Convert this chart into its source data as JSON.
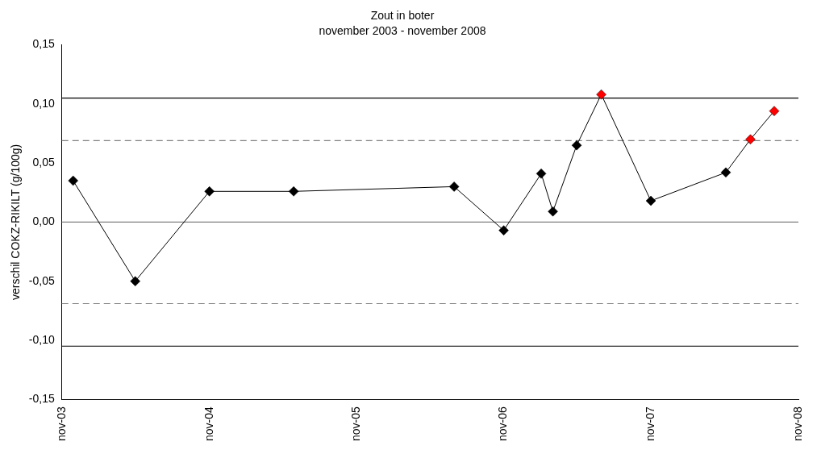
{
  "chart_data": {
    "type": "line",
    "title": "Zout in boter",
    "subtitle": "november 2003 - november 2008",
    "ylabel": "verschil COKZ-RIKILT (g/100g)",
    "x": [
      "2003-11-29",
      "2004-05-01",
      "2004-11-01",
      "2005-05-29",
      "2006-07-01",
      "2006-11-01",
      "2007-02-02",
      "2007-03-03",
      "2007-05-01",
      "2007-07-01",
      "2007-11-01",
      "2008-05-05",
      "2008-07-05",
      "2008-09-02"
    ],
    "series": [
      {
        "color": "#000000",
        "values": [
          0.035,
          -0.05,
          0.026,
          0.026,
          0.03,
          -0.007,
          0.041,
          0.009,
          0.065,
          0.108,
          0.018,
          0.042,
          0.07,
          0.094
        ],
        "colors": [
          "#000000",
          "#000000",
          "#000000",
          "#000000",
          "#000000",
          "#000000",
          "#000000",
          "#000000",
          "#000000",
          "#ff0000",
          "#000000",
          "#000000",
          "#ff0000",
          "#ff0000"
        ]
      }
    ],
    "xlim": [
      "2003-11-01",
      "2008-11-01"
    ],
    "xticks": [
      {
        "value": "2003-11-01",
        "label": "nov-03"
      },
      {
        "value": "2004-11-01",
        "label": "nov-04"
      },
      {
        "value": "2005-11-01",
        "label": "nov-05"
      },
      {
        "value": "2006-11-01",
        "label": "nov-06"
      },
      {
        "value": "2007-11-01",
        "label": "nov-07"
      },
      {
        "value": "2008-11-01",
        "label": "nov-08"
      }
    ],
    "ylim": [
      -0.15,
      0.15
    ],
    "yticks": [
      {
        "value": -0.15,
        "label": "-0,15"
      },
      {
        "value": -0.1,
        "label": "-0,10"
      },
      {
        "value": -0.05,
        "label": "-0,05"
      },
      {
        "value": 0,
        "label": "0,00"
      },
      {
        "value": 0.05,
        "label": "0,05"
      },
      {
        "value": 0.1,
        "label": "0,10"
      },
      {
        "value": 0.15,
        "label": "0,15"
      }
    ],
    "ref_lines": [
      {
        "axis": "y",
        "value": 0.105,
        "color": "#000000",
        "line_style": "solid"
      },
      {
        "axis": "y",
        "value": 0.069,
        "color": "#808080",
        "line_style": "dashed"
      },
      {
        "axis": "y",
        "value": 0,
        "color": "#808080",
        "line_style": "solid"
      },
      {
        "axis": "y",
        "value": -0.069,
        "color": "#808080",
        "line_style": "dashed"
      },
      {
        "axis": "y",
        "value": -0.105,
        "color": "#000000",
        "line_style": "solid"
      }
    ],
    "grid": false,
    "legend": false,
    "marker": "diamond",
    "line_style": "solid"
  }
}
